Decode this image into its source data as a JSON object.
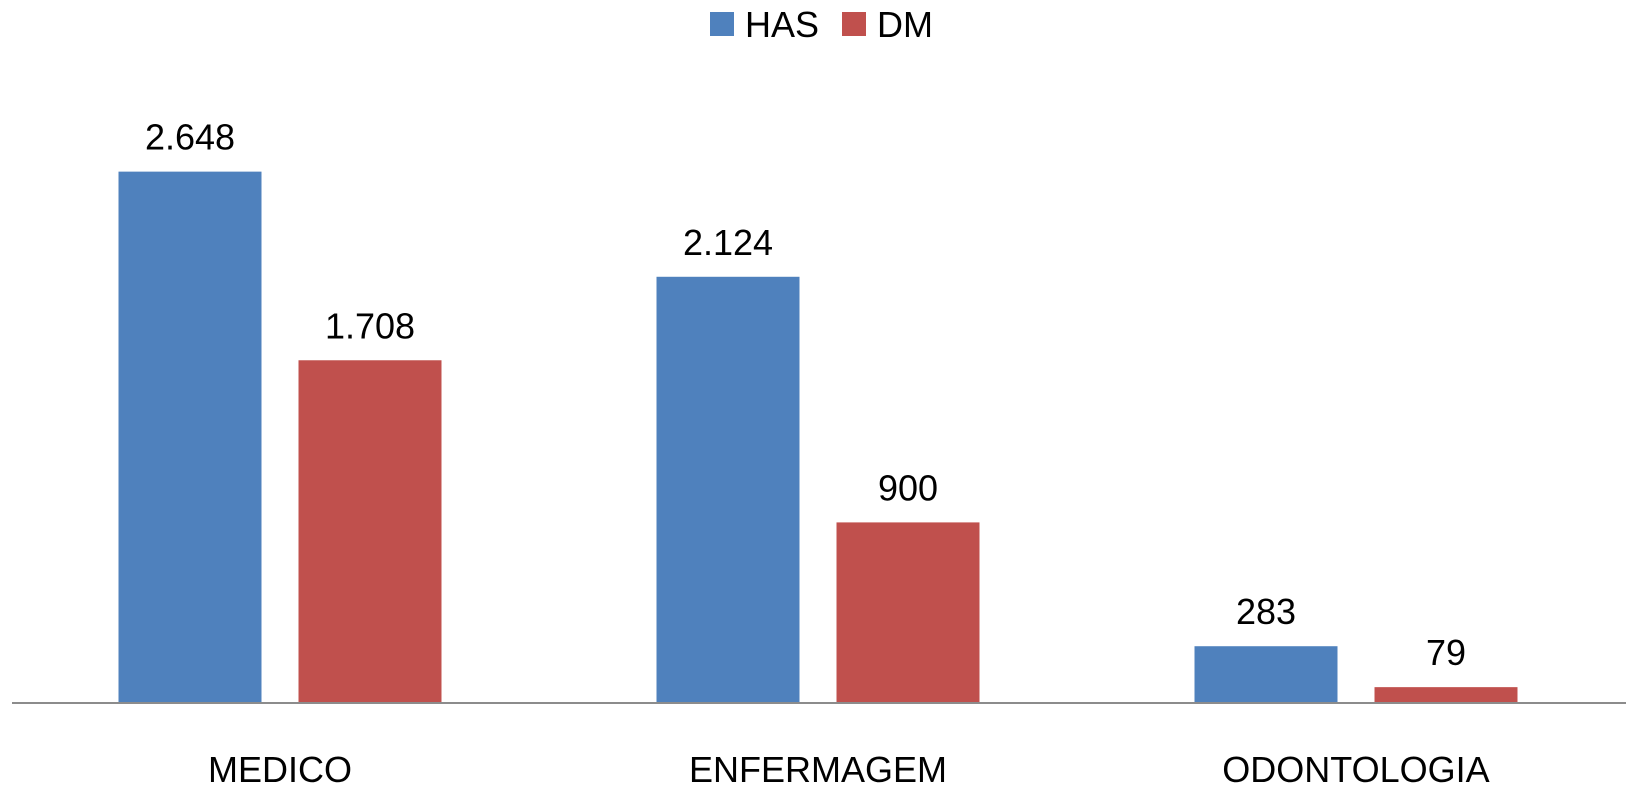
{
  "chart_data": {
    "type": "bar",
    "title": "",
    "xlabel": "",
    "ylabel": "",
    "categories": [
      "MEDICO",
      "ENFERMAGEM",
      "ODONTOLOGIA"
    ],
    "series": [
      {
        "name": "HAS",
        "color": "#4F81BD",
        "values": [
          2648,
          2124,
          283
        ],
        "labels": [
          "2.648",
          "2.124",
          "283"
        ]
      },
      {
        "name": "DM",
        "color": "#C0504D",
        "values": [
          1708,
          900,
          79
        ],
        "labels": [
          "1.708",
          "900",
          "79"
        ]
      }
    ],
    "ylim": [
      0,
      3000
    ],
    "grid": false,
    "legend": "top"
  }
}
